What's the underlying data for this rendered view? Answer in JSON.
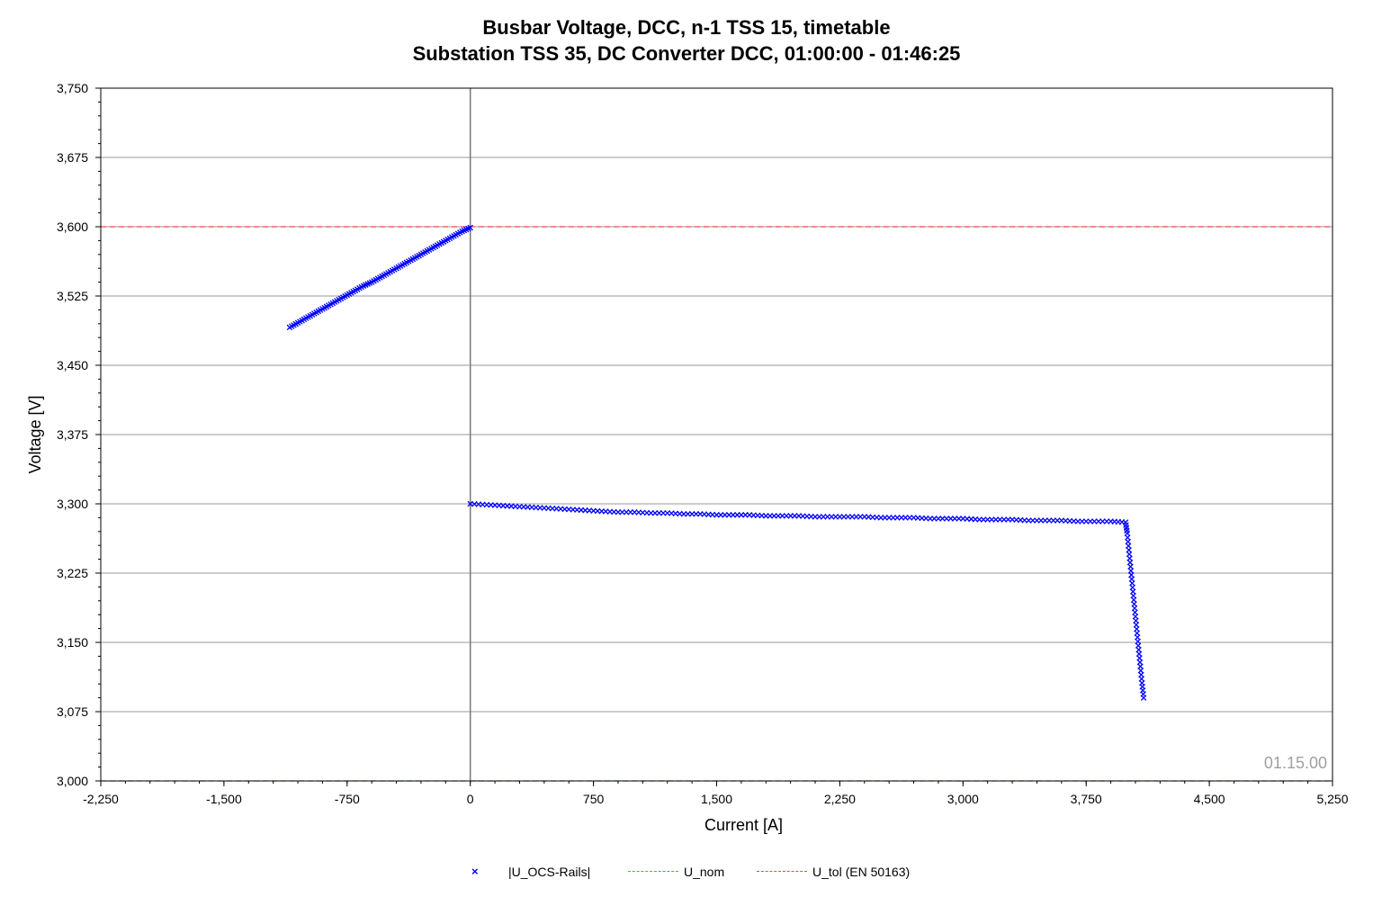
{
  "chart_data": {
    "type": "scatter",
    "title": "Busbar Voltage, DCC, n-1 TSS 15, timetable",
    "subtitle": "Substation TSS 35, DC Converter DCC, 01:00:00  - 01:46:25",
    "xlabel": "Current [A]",
    "ylabel": "Voltage [V]",
    "xlim": [
      -2250,
      5250
    ],
    "ylim": [
      3000,
      3750
    ],
    "x_ticks": [
      "-2,250",
      "-1,500",
      "-750",
      "0",
      "750",
      "1,500",
      "2,250",
      "3,000",
      "3,750",
      "4,500",
      "5,250"
    ],
    "y_ticks": [
      "3,000",
      "3,075",
      "3,150",
      "3,225",
      "3,300",
      "3,375",
      "3,450",
      "3,525",
      "3,600",
      "3,675",
      "3,750"
    ],
    "grid": true,
    "legend_position": "bottom",
    "watermark": "01.15.00",
    "series": [
      {
        "name": "|U_OCS-Rails|",
        "kind": "scatter",
        "marker": "x",
        "color": "#0000ff",
        "points": [
          [
            -1100,
            3491
          ],
          [
            -1050,
            3496
          ],
          [
            -1000,
            3501
          ],
          [
            -950,
            3506
          ],
          [
            -900,
            3511
          ],
          [
            -850,
            3516
          ],
          [
            -800,
            3521
          ],
          [
            -750,
            3526
          ],
          [
            -700,
            3531
          ],
          [
            -650,
            3536
          ],
          [
            -600,
            3540
          ],
          [
            -550,
            3545
          ],
          [
            -500,
            3550
          ],
          [
            -450,
            3555
          ],
          [
            -400,
            3560
          ],
          [
            -350,
            3565
          ],
          [
            -300,
            3570
          ],
          [
            -250,
            3575
          ],
          [
            -200,
            3580
          ],
          [
            -150,
            3585
          ],
          [
            -100,
            3590
          ],
          [
            -50,
            3595
          ],
          [
            0,
            3599
          ],
          [
            0,
            3300
          ],
          [
            100,
            3299
          ],
          [
            200,
            3298
          ],
          [
            300,
            3297
          ],
          [
            400,
            3296
          ],
          [
            500,
            3295
          ],
          [
            600,
            3294
          ],
          [
            700,
            3293
          ],
          [
            800,
            3292
          ],
          [
            900,
            3291
          ],
          [
            1000,
            3291
          ],
          [
            1100,
            3290
          ],
          [
            1200,
            3290
          ],
          [
            1300,
            3289
          ],
          [
            1400,
            3289
          ],
          [
            1500,
            3288
          ],
          [
            1600,
            3288
          ],
          [
            1700,
            3288
          ],
          [
            1800,
            3287
          ],
          [
            1900,
            3287
          ],
          [
            2000,
            3287
          ],
          [
            2100,
            3286
          ],
          [
            2200,
            3286
          ],
          [
            2300,
            3286
          ],
          [
            2400,
            3286
          ],
          [
            2500,
            3285
          ],
          [
            2600,
            3285
          ],
          [
            2700,
            3285
          ],
          [
            2800,
            3284
          ],
          [
            2900,
            3284
          ],
          [
            3000,
            3284
          ],
          [
            3100,
            3283
          ],
          [
            3200,
            3283
          ],
          [
            3300,
            3283
          ],
          [
            3400,
            3282
          ],
          [
            3500,
            3282
          ],
          [
            3600,
            3282
          ],
          [
            3700,
            3281
          ],
          [
            3800,
            3281
          ],
          [
            3900,
            3281
          ],
          [
            3990,
            3280
          ],
          [
            4000,
            3268
          ],
          [
            4010,
            3250
          ],
          [
            4020,
            3232
          ],
          [
            4030,
            3214
          ],
          [
            4040,
            3196
          ],
          [
            4050,
            3178
          ],
          [
            4060,
            3160
          ],
          [
            4070,
            3142
          ],
          [
            4080,
            3124
          ],
          [
            4090,
            3106
          ],
          [
            4100,
            3090
          ]
        ]
      },
      {
        "name": "U_nom",
        "kind": "hline",
        "y": 3000,
        "color": "#4caf50",
        "style": "dashed"
      },
      {
        "name": "U_tol (EN 50163)",
        "kind": "hline",
        "y": 3600,
        "color": "#ff4040",
        "style": "dashed"
      }
    ]
  }
}
